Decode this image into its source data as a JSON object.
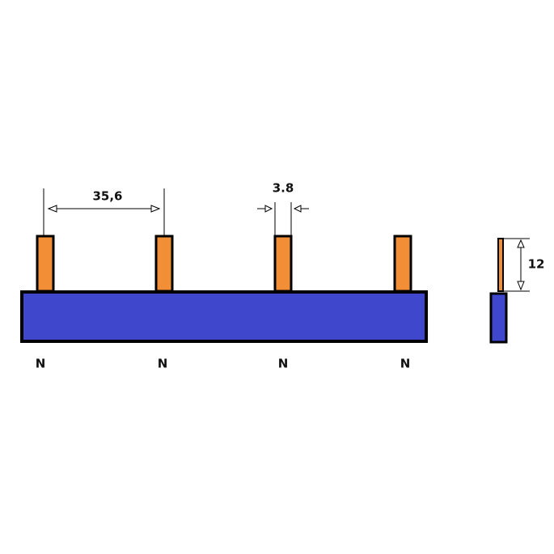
{
  "dimensions": {
    "pitch": "35,6",
    "pin_width": "3.8",
    "pin_height": "12"
  },
  "pins": [
    {
      "label": "N"
    },
    {
      "label": "N"
    },
    {
      "label": "N"
    },
    {
      "label": "N"
    }
  ]
}
